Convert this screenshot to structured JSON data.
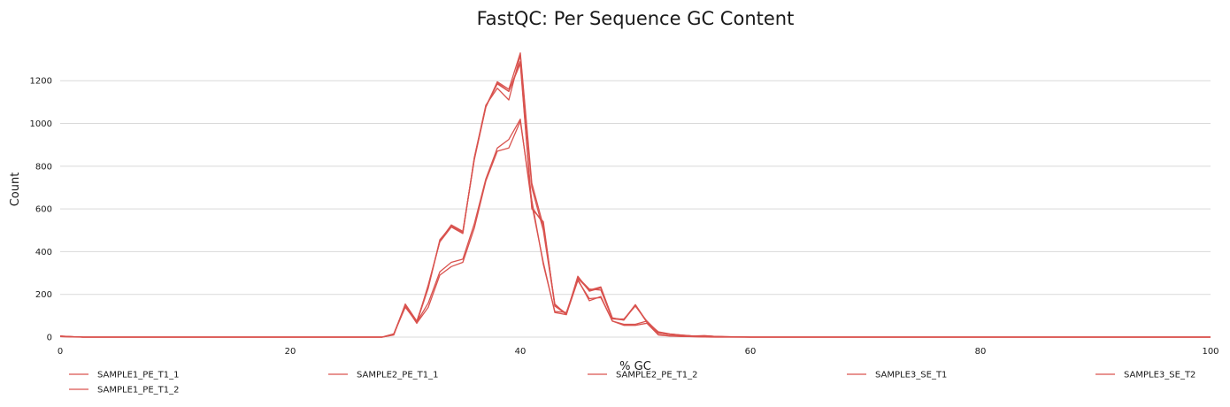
{
  "chart_data": {
    "type": "line",
    "title": "FastQC: Per Sequence GC Content",
    "xlabel": "% GC",
    "ylabel": "Count",
    "xlim": [
      0,
      100
    ],
    "ylim": [
      0,
      1350
    ],
    "xticks": [
      0,
      20,
      40,
      60,
      80,
      100
    ],
    "yticks": [
      0,
      200,
      400,
      600,
      800,
      1000,
      1200
    ],
    "grid": "horizontal",
    "legend_position": "bottom",
    "series_color": "#d9534f",
    "grid_color": "#d9d9d9",
    "series": [
      {
        "name": "SAMPLE1_PE_T1_1",
        "x": [
          0,
          1,
          2,
          10,
          20,
          28,
          29,
          30,
          31,
          32,
          33,
          34,
          35,
          36,
          37,
          38,
          39,
          40,
          41,
          42,
          43,
          44,
          45,
          46,
          47,
          48,
          49,
          50,
          51,
          52,
          53,
          54,
          55,
          56,
          57,
          58,
          60,
          65,
          70,
          100
        ],
        "y": [
          5,
          2,
          0,
          0,
          0,
          0,
          15,
          150,
          65,
          140,
          290,
          330,
          350,
          510,
          730,
          870,
          885,
          1010,
          640,
          340,
          120,
          115,
          270,
          170,
          190,
          75,
          55,
          55,
          65,
          10,
          5,
          3,
          2,
          1,
          0,
          0,
          0,
          0,
          0,
          0
        ]
      },
      {
        "name": "SAMPLE1_PE_T1_2",
        "x": [
          0,
          1,
          2,
          10,
          20,
          28,
          29,
          30,
          31,
          32,
          33,
          34,
          35,
          36,
          37,
          38,
          39,
          40,
          41,
          42,
          43,
          44,
          45,
          46,
          47,
          48,
          49,
          50,
          51,
          52,
          53,
          54,
          55,
          56,
          57,
          58,
          60,
          65,
          70,
          100
        ],
        "y": [
          5,
          2,
          0,
          0,
          0,
          0,
          15,
          140,
          70,
          160,
          305,
          350,
          365,
          530,
          740,
          885,
          925,
          1020,
          620,
          350,
          115,
          105,
          265,
          180,
          185,
          75,
          60,
          60,
          75,
          12,
          6,
          4,
          2,
          1,
          0,
          0,
          0,
          0,
          0,
          0
        ]
      },
      {
        "name": "SAMPLE2_PE_T1_1",
        "x": [
          0,
          1,
          2,
          10,
          20,
          28,
          29,
          30,
          31,
          32,
          33,
          34,
          35,
          36,
          37,
          38,
          39,
          40,
          41,
          42,
          43,
          44,
          45,
          46,
          47,
          48,
          49,
          50,
          51,
          52,
          53,
          54,
          55,
          56,
          57,
          58,
          60,
          65,
          70,
          100
        ],
        "y": [
          4,
          2,
          0,
          0,
          0,
          0,
          10,
          155,
          75,
          235,
          450,
          525,
          495,
          830,
          1075,
          1195,
          1160,
          1330,
          720,
          520,
          155,
          105,
          285,
          215,
          230,
          90,
          80,
          150,
          70,
          25,
          15,
          10,
          6,
          6,
          3,
          2,
          0,
          0,
          0,
          0
        ]
      },
      {
        "name": "SAMPLE2_PE_T1_2",
        "x": [
          0,
          1,
          2,
          10,
          20,
          28,
          29,
          30,
          31,
          32,
          33,
          34,
          35,
          36,
          37,
          38,
          39,
          40,
          41,
          42,
          43,
          44,
          45,
          46,
          47,
          48,
          49,
          50,
          51,
          52,
          53,
          54,
          55,
          56,
          57,
          58,
          60,
          65,
          70,
          100
        ],
        "y": [
          4,
          2,
          0,
          0,
          0,
          0,
          12,
          145,
          65,
          245,
          445,
          515,
          485,
          840,
          1085,
          1165,
          1110,
          1320,
          700,
          500,
          150,
          110,
          280,
          225,
          220,
          85,
          85,
          145,
          75,
          22,
          14,
          9,
          5,
          5,
          3,
          2,
          0,
          0,
          0,
          0
        ]
      },
      {
        "name": "SAMPLE3_SE_T1",
        "x": [
          0,
          1,
          2,
          10,
          20,
          28,
          29,
          30,
          31,
          32,
          33,
          34,
          35,
          36,
          37,
          38,
          39,
          40,
          41,
          42,
          43,
          44,
          45,
          46,
          47,
          48,
          49,
          50,
          51,
          52,
          53,
          54,
          55,
          56,
          57,
          58,
          60,
          65,
          70,
          100
        ],
        "y": [
          3,
          1,
          0,
          0,
          0,
          0,
          14,
          150,
          68,
          230,
          455,
          520,
          490,
          835,
          1080,
          1190,
          1150,
          1280,
          600,
          540,
          145,
          108,
          275,
          220,
          235,
          88,
          82,
          152,
          72,
          20,
          12,
          8,
          5,
          7,
          3,
          1,
          0,
          0,
          0,
          0
        ]
      },
      {
        "name": "SAMPLE3_SE_T2",
        "x": [
          0,
          1,
          2,
          10,
          20,
          28,
          29,
          30,
          31,
          32,
          33,
          34,
          35,
          36,
          37,
          38,
          39,
          40,
          41,
          42,
          43,
          44,
          45,
          46,
          47,
          48,
          49,
          50,
          51,
          52,
          53,
          54,
          55,
          56,
          57,
          58,
          60,
          65,
          70,
          100
        ],
        "y": [
          3,
          1,
          0,
          0,
          0,
          0,
          13,
          148,
          70,
          240,
          448,
          518,
          488,
          838,
          1078,
          1185,
          1150,
          1290,
          610,
          530,
          148,
          106,
          278,
          218,
          232,
          86,
          80,
          148,
          70,
          20,
          12,
          8,
          5,
          6,
          3,
          1,
          0,
          0,
          0,
          0
        ]
      }
    ]
  }
}
